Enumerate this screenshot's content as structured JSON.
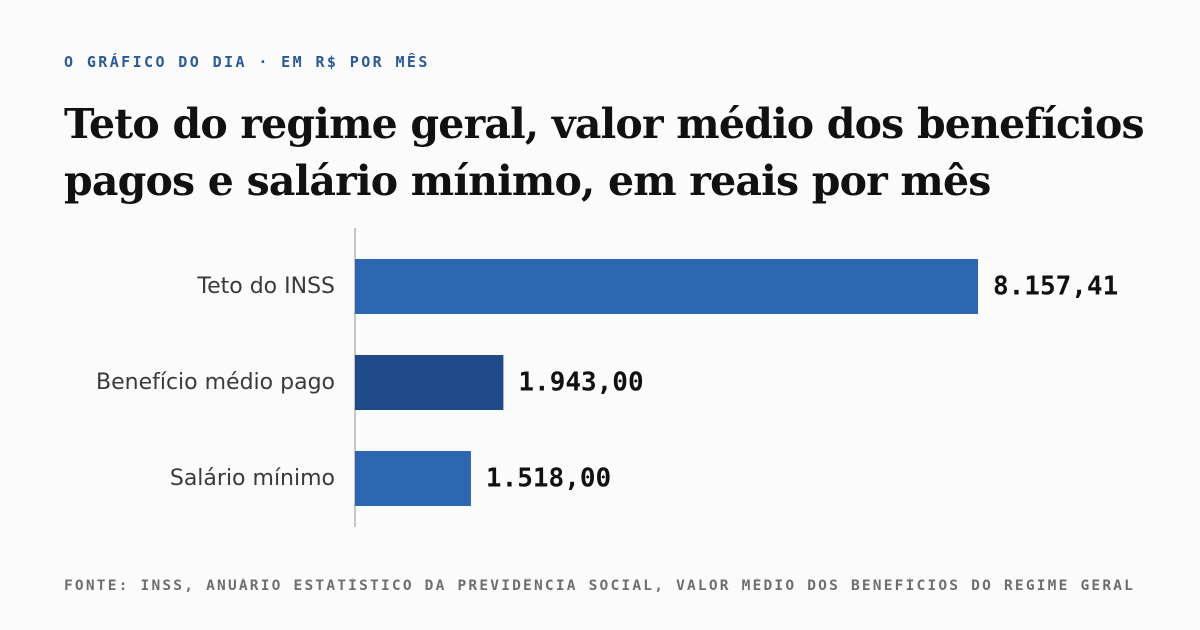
{
  "header": {
    "kicker": "O GRÁFICO DO DIA · EM R$ POR MÊS",
    "title": "Teto do regime geral, valor médio dos benefícios pagos e salário mínimo, em reais por mês"
  },
  "chart_data": {
    "type": "bar",
    "orientation": "horizontal",
    "categories": [
      "Teto do INSS",
      "Benefício médio pago",
      "Salário mínimo"
    ],
    "values": [
      8157.41,
      1943.0,
      1518.0
    ],
    "value_labels": [
      "8.157,41",
      "1.943,00",
      "1.518,00"
    ],
    "colors": [
      "#2e67b1",
      "#1e4a8a",
      "#2e67b1"
    ],
    "xlim": [
      0,
      8157.41
    ],
    "grid": false,
    "legend": "none"
  },
  "footer": {
    "source": "FONTE: INSS, ANUÁRIO ESTATÍSTICO DA PREVIDÊNCIA SOCIAL, VALOR MÉDIO DOS BENEFÍCIOS DO REGIME GERAL"
  }
}
